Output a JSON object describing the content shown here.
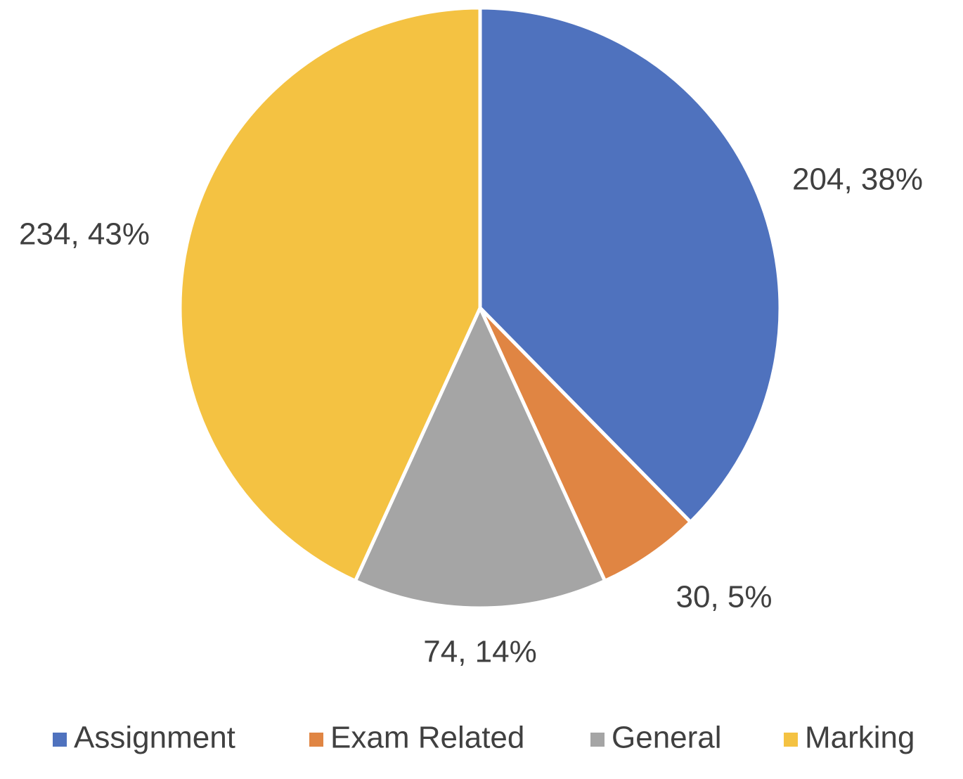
{
  "chart_data": {
    "type": "pie",
    "categories": [
      "Assignment",
      "Exam Related",
      "General",
      "Marking"
    ],
    "values": [
      204,
      30,
      74,
      234
    ],
    "value_labels": [
      "204, 38%",
      "30, 5%",
      "74, 14%",
      "234, 43%"
    ],
    "colors": [
      "#4f72be",
      "#e08543",
      "#a5a5a5",
      "#f4c242"
    ],
    "legend": "bottom"
  }
}
